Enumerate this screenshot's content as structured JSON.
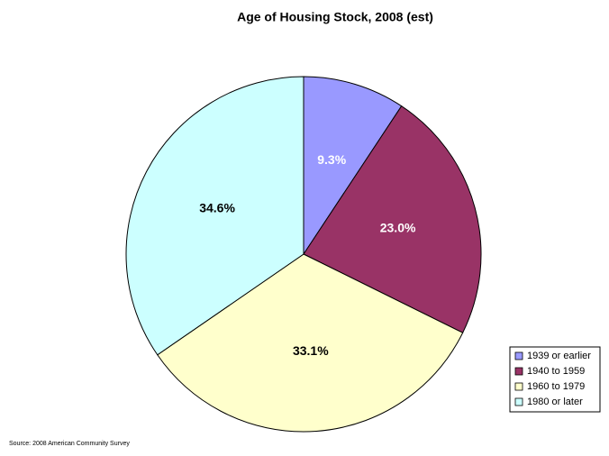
{
  "chart_data": {
    "type": "pie",
    "title": "Age of Housing Stock, 2008 (est)",
    "categories": [
      "1939 or earlier",
      "1940 to 1959",
      "1960 to 1979",
      "1980 or later"
    ],
    "values": [
      9.3,
      23.0,
      33.1,
      34.6
    ],
    "value_labels": [
      "9.3%",
      "23.0%",
      "33.1%",
      "34.6%"
    ],
    "colors": [
      "#9999ff",
      "#993366",
      "#ffffcc",
      "#ccffff"
    ],
    "legend": "lower right",
    "source": "Source: 2008 American Community Survey"
  }
}
